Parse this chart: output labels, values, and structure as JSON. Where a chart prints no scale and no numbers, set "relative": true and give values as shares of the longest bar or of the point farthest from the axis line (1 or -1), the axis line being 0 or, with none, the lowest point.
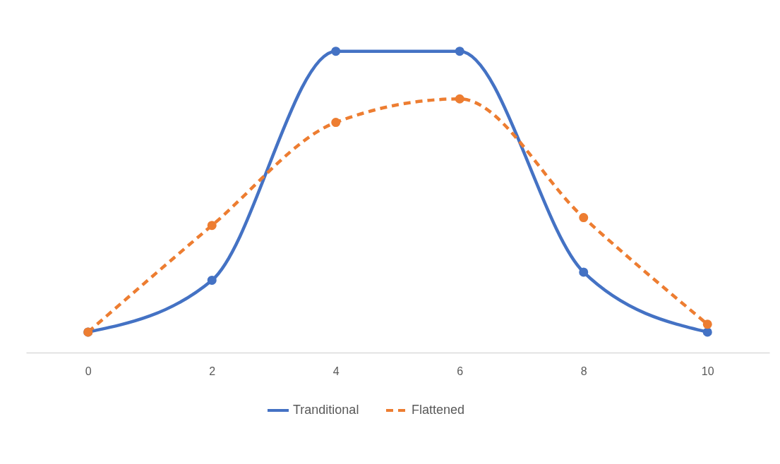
{
  "chart_data": {
    "type": "line",
    "relative": true,
    "categories": [
      "0",
      "2",
      "4",
      "6",
      "8",
      "10"
    ],
    "series": [
      {
        "name": "Tranditional",
        "color": "#4472c4",
        "line_style": "solid",
        "values": [
          0.068,
          0.24,
          1,
          1,
          0.267,
          0.068
        ]
      },
      {
        "name": "Flattened",
        "color": "#ed7d31",
        "line_style": "dashed",
        "values": [
          0.068,
          0.422,
          0.764,
          0.842,
          0.448,
          0.094
        ]
      }
    ],
    "marker": "circle",
    "grid": false,
    "legend": "bottom"
  }
}
